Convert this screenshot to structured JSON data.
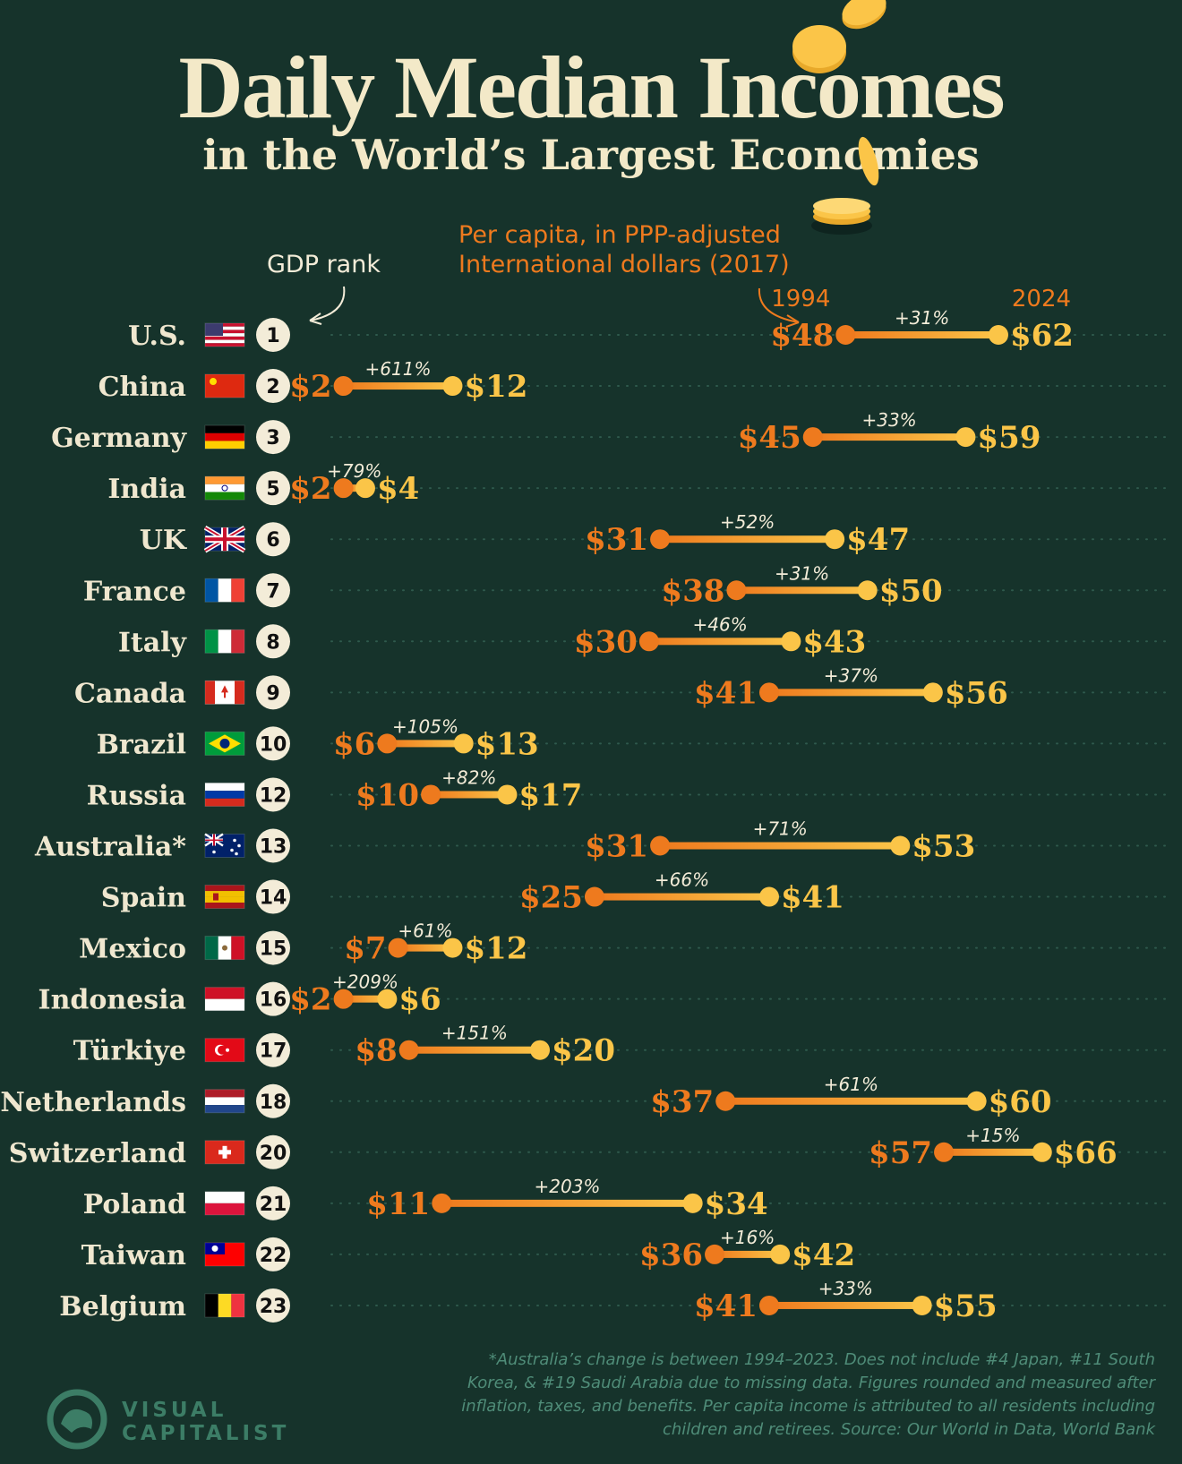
{
  "title": {
    "main": "Daily Median Incomes",
    "sub": "in the World’s Largest Economies"
  },
  "subtitle": "Per capita, in PPP-adjusted International dollars (2017)",
  "rank_header": "GDP rank",
  "colors": {
    "background": "#16332b",
    "value_1994": "#ee7a1e",
    "value_2024": "#fbc548",
    "title": "#f3e9c8"
  },
  "chart_data": {
    "type": "dumbbell",
    "title": "Daily Median Incomes in the World’s Largest Economies",
    "subtitle": "Per capita, in PPP-adjusted International dollars (2017)",
    "series_labels": [
      "1994",
      "2024"
    ],
    "rows": [
      {
        "country": "U.S.",
        "rank": "1",
        "v1994": 48,
        "v2024": 62,
        "change": "+31%",
        "flag": "us-flag"
      },
      {
        "country": "China",
        "rank": "2",
        "v1994": 2,
        "v2024": 12,
        "change": "+611%",
        "flag": "china-flag"
      },
      {
        "country": "Germany",
        "rank": "3",
        "v1994": 45,
        "v2024": 59,
        "change": "+33%",
        "flag": "germany-flag"
      },
      {
        "country": "India",
        "rank": "5",
        "v1994": 2,
        "v2024": 4,
        "change": "+79%",
        "flag": "india-flag"
      },
      {
        "country": "UK",
        "rank": "6",
        "v1994": 31,
        "v2024": 47,
        "change": "+52%",
        "flag": "uk-flag"
      },
      {
        "country": "France",
        "rank": "7",
        "v1994": 38,
        "v2024": 50,
        "change": "+31%",
        "flag": "france-flag"
      },
      {
        "country": "Italy",
        "rank": "8",
        "v1994": 30,
        "v2024": 43,
        "change": "+46%",
        "flag": "italy-flag"
      },
      {
        "country": "Canada",
        "rank": "9",
        "v1994": 41,
        "v2024": 56,
        "change": "+37%",
        "flag": "canada-flag"
      },
      {
        "country": "Brazil",
        "rank": "10",
        "v1994": 6,
        "v2024": 13,
        "change": "+105%",
        "flag": "brazil-flag"
      },
      {
        "country": "Russia",
        "rank": "12",
        "v1994": 10,
        "v2024": 17,
        "change": "+82%",
        "flag": "russia-flag"
      },
      {
        "country": "Australia*",
        "rank": "13",
        "v1994": 31,
        "v2024": 53,
        "change": "+71%",
        "flag": "australia-flag"
      },
      {
        "country": "Spain",
        "rank": "14",
        "v1994": 25,
        "v2024": 41,
        "change": "+66%",
        "flag": "spain-flag"
      },
      {
        "country": "Mexico",
        "rank": "15",
        "v1994": 7,
        "v2024": 12,
        "change": "+61%",
        "flag": "mexico-flag"
      },
      {
        "country": "Indonesia",
        "rank": "16",
        "v1994": 2,
        "v2024": 6,
        "change": "+209%",
        "flag": "indonesia-flag"
      },
      {
        "country": "Türkiye",
        "rank": "17",
        "v1994": 8,
        "v2024": 20,
        "change": "+151%",
        "flag": "turkiye-flag"
      },
      {
        "country": "Netherlands",
        "rank": "18",
        "v1994": 37,
        "v2024": 60,
        "change": "+61%",
        "flag": "netherlands-flag"
      },
      {
        "country": "Switzerland",
        "rank": "20",
        "v1994": 57,
        "v2024": 66,
        "change": "+15%",
        "flag": "switzerland-flag"
      },
      {
        "country": "Poland",
        "rank": "21",
        "v1994": 11,
        "v2024": 34,
        "change": "+203%",
        "flag": "poland-flag"
      },
      {
        "country": "Taiwan",
        "rank": "22",
        "v1994": 36,
        "v2024": 42,
        "change": "+16%",
        "flag": "taiwan-flag"
      },
      {
        "country": "Belgium",
        "rank": "23",
        "v1994": 41,
        "v2024": 55,
        "change": "+33%",
        "flag": "belgium-flag"
      }
    ]
  },
  "footnote": "*Australia’s change is between 1994–2023. Does not include #4 Japan, #11 South Korea, & #19 Saudi Arabia due to missing data. Figures rounded and measured after inflation, taxes, and benefits. Per capita income is attributed to all residents including children and retirees. Source: Our World in Data, World Bank",
  "brand": {
    "line1": "VISUAL",
    "line2": "CAPITALIST",
    "icon": "visual-capitalist-logo-icon"
  }
}
